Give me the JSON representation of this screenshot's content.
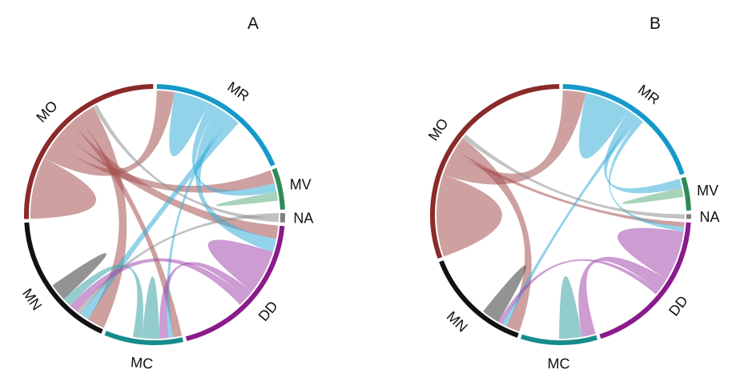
{
  "colors": {
    "MO": "#8a2a2a",
    "MR": "#1499c9",
    "MV": "#2e8b57",
    "NA": "#7f7f7f",
    "DD": "#8b1a8b",
    "MC": "#178c8c",
    "MN": "#111111"
  },
  "ribbon_colors": {
    "MO": "#a65252",
    "MR": "#3aaed8",
    "MV": "#5fae81",
    "NA": "#8f8f8f",
    "DD": "#a44aae",
    "MC": "#3aa3a3",
    "MN": "#3a3a3a"
  },
  "panels": [
    {
      "title": "A",
      "segments": [
        {
          "name": "MR",
          "value": 32
        },
        {
          "name": "MV",
          "value": 9
        },
        {
          "name": "NA",
          "value": 2
        },
        {
          "name": "DD",
          "value": 34
        },
        {
          "name": "MC",
          "value": 17
        },
        {
          "name": "MN",
          "value": 30
        },
        {
          "name": "MO",
          "value": 44
        }
      ],
      "links": [
        {
          "source": "MO",
          "target": "MO",
          "value": 14
        },
        {
          "source": "MO",
          "target": "MR",
          "value": 4
        },
        {
          "source": "MO",
          "target": "MV",
          "value": 3
        },
        {
          "source": "MO",
          "target": "DD",
          "value": 3
        },
        {
          "source": "MO",
          "target": "MC",
          "value": 2
        },
        {
          "source": "MO",
          "target": "MN",
          "value": 4
        },
        {
          "source": "MR",
          "target": "MR",
          "value": 8
        },
        {
          "source": "MR",
          "target": "MV",
          "value": 2
        },
        {
          "source": "MR",
          "target": "DD",
          "value": 3
        },
        {
          "source": "MR",
          "target": "MC",
          "value": 1
        },
        {
          "source": "MR",
          "target": "MN",
          "value": 2
        },
        {
          "source": "MV",
          "target": "MV",
          "value": 2
        },
        {
          "source": "NA",
          "target": "MN",
          "value": 1
        },
        {
          "source": "NA",
          "target": "MO",
          "value": 1
        },
        {
          "source": "DD",
          "target": "DD",
          "value": 10
        },
        {
          "source": "DD",
          "target": "MC",
          "value": 2
        },
        {
          "source": "DD",
          "target": "MN",
          "value": 2
        },
        {
          "source": "MC",
          "target": "MC",
          "value": 4
        },
        {
          "source": "MC",
          "target": "MN",
          "value": 2
        },
        {
          "source": "MN",
          "target": "MN",
          "value": 4
        }
      ]
    },
    {
      "title": "B",
      "segments": [
        {
          "name": "MR",
          "value": 33
        },
        {
          "name": "MV",
          "value": 7
        },
        {
          "name": "NA",
          "value": 1
        },
        {
          "name": "DD",
          "value": 32
        },
        {
          "name": "MC",
          "value": 16
        },
        {
          "name": "MN",
          "value": 23
        },
        {
          "name": "MO",
          "value": 51
        }
      ],
      "links": [
        {
          "source": "MO",
          "target": "MO",
          "value": 18
        },
        {
          "source": "MO",
          "target": "MR",
          "value": 5
        },
        {
          "source": "MO",
          "target": "DD",
          "value": 1
        },
        {
          "source": "MO",
          "target": "MN",
          "value": 3
        },
        {
          "source": "MR",
          "target": "MR",
          "value": 10
        },
        {
          "source": "MR",
          "target": "MV",
          "value": 2
        },
        {
          "source": "MR",
          "target": "MN",
          "value": 1
        },
        {
          "source": "MR",
          "target": "DD",
          "value": 1
        },
        {
          "source": "MV",
          "target": "MV",
          "value": 2
        },
        {
          "source": "NA",
          "target": "MO",
          "value": 1
        },
        {
          "source": "DD",
          "target": "DD",
          "value": 11
        },
        {
          "source": "DD",
          "target": "MC",
          "value": 3
        },
        {
          "source": "DD",
          "target": "MN",
          "value": 1
        },
        {
          "source": "MC",
          "target": "MC",
          "value": 5
        },
        {
          "source": "MN",
          "target": "MN",
          "value": 4
        }
      ]
    }
  ]
}
